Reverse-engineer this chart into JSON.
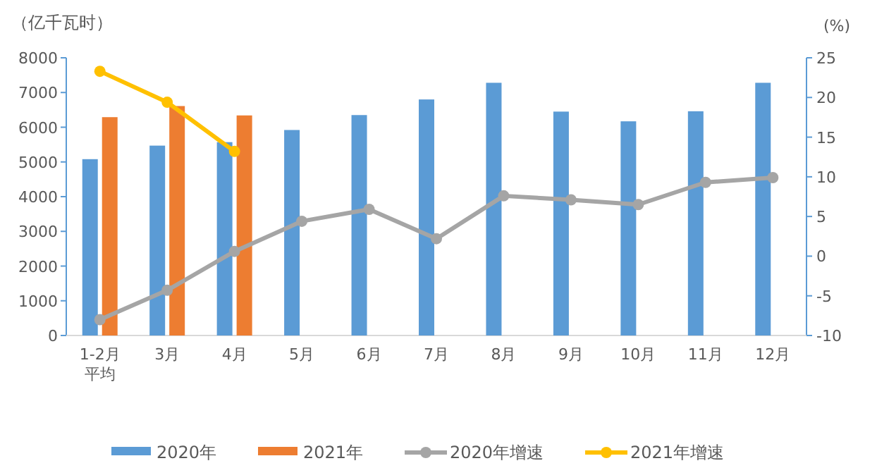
{
  "chart_data": {
    "type": "bar",
    "ylabel": "（亿千瓦时）",
    "y2label": "(%)",
    "categories": [
      "1-2月平均",
      "3月",
      "4月",
      "5月",
      "6月",
      "7月",
      "8月",
      "9月",
      "10月",
      "11月",
      "12月"
    ],
    "series": [
      {
        "name": "2020年",
        "color": "#5b9bd5",
        "values": [
          5080,
          5470,
          5570,
          5920,
          6350,
          6800,
          7280,
          6450,
          6170,
          6460,
          7280
        ]
      },
      {
        "name": "2021年",
        "color": "#ed7d31",
        "values": [
          6290,
          6610,
          6340,
          null,
          null,
          null,
          null,
          null,
          null,
          null,
          null
        ]
      },
      {
        "name": "2020年增速",
        "type": "line",
        "axis": "y2",
        "color": "#a5a5a5",
        "marker": "circle",
        "values": [
          -8.0,
          -4.3,
          0.6,
          4.4,
          5.9,
          2.2,
          7.6,
          7.1,
          6.5,
          9.3,
          9.9
        ]
      },
      {
        "name": "2021年增速",
        "type": "line",
        "axis": "y2",
        "color": "#ffc000",
        "marker": "circle",
        "values": [
          23.3,
          19.4,
          13.2,
          null,
          null,
          null,
          null,
          null,
          null,
          null,
          null
        ]
      }
    ],
    "ylim": [
      0,
      8000
    ],
    "yticks": [
      0,
      1000,
      2000,
      3000,
      4000,
      5000,
      6000,
      7000,
      8000
    ],
    "y2lim": [
      -10,
      25
    ],
    "y2ticks": [
      -10,
      -5,
      0,
      5,
      10,
      15,
      20,
      25
    ],
    "legend": "bottom"
  }
}
